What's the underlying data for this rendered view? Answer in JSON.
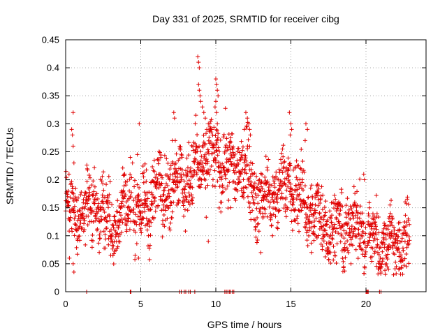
{
  "chart_data": {
    "type": "scatter",
    "title": "Day 331 of 2025, SRMTID for receiver cibg",
    "xlabel": "GPS time / hours",
    "ylabel": "SRMTID / TECUs",
    "xlim": [
      0,
      24
    ],
    "ylim": [
      0,
      0.45
    ],
    "xticks": [
      0,
      5,
      10,
      15,
      20
    ],
    "xtick_labels": [
      "0",
      "5",
      "10",
      "15",
      "20"
    ],
    "yticks": [
      0,
      0.05,
      0.1,
      0.15,
      0.2,
      0.25,
      0.3,
      0.35,
      0.4,
      0.45
    ],
    "ytick_labels": [
      "0",
      "0.05",
      "0.1",
      "0.15",
      "0.2",
      "0.25",
      "0.3",
      "0.35",
      "0.4",
      "0.45"
    ],
    "grid": true,
    "marker": "+",
    "color": "#e00000",
    "trend": [
      {
        "x": 0.0,
        "y": 0.15
      },
      {
        "x": 0.5,
        "y": 0.14
      },
      {
        "x": 1.0,
        "y": 0.15
      },
      {
        "x": 1.5,
        "y": 0.15
      },
      {
        "x": 2.0,
        "y": 0.15
      },
      {
        "x": 2.5,
        "y": 0.14
      },
      {
        "x": 3.0,
        "y": 0.12
      },
      {
        "x": 3.5,
        "y": 0.13
      },
      {
        "x": 4.0,
        "y": 0.15
      },
      {
        "x": 4.5,
        "y": 0.17
      },
      {
        "x": 5.0,
        "y": 0.13
      },
      {
        "x": 5.5,
        "y": 0.16
      },
      {
        "x": 6.0,
        "y": 0.18
      },
      {
        "x": 6.5,
        "y": 0.19
      },
      {
        "x": 7.0,
        "y": 0.19
      },
      {
        "x": 7.5,
        "y": 0.2
      },
      {
        "x": 8.0,
        "y": 0.2
      },
      {
        "x": 8.5,
        "y": 0.21
      },
      {
        "x": 9.0,
        "y": 0.23
      },
      {
        "x": 9.5,
        "y": 0.24
      },
      {
        "x": 10.0,
        "y": 0.23
      },
      {
        "x": 10.5,
        "y": 0.24
      },
      {
        "x": 11.0,
        "y": 0.21
      },
      {
        "x": 11.5,
        "y": 0.23
      },
      {
        "x": 12.0,
        "y": 0.22
      },
      {
        "x": 12.5,
        "y": 0.18
      },
      {
        "x": 13.0,
        "y": 0.17
      },
      {
        "x": 13.5,
        "y": 0.16
      },
      {
        "x": 14.0,
        "y": 0.18
      },
      {
        "x": 14.5,
        "y": 0.19
      },
      {
        "x": 15.0,
        "y": 0.19
      },
      {
        "x": 15.5,
        "y": 0.17
      },
      {
        "x": 16.0,
        "y": 0.15
      },
      {
        "x": 16.5,
        "y": 0.14
      },
      {
        "x": 17.0,
        "y": 0.13
      },
      {
        "x": 17.5,
        "y": 0.12
      },
      {
        "x": 18.0,
        "y": 0.11
      },
      {
        "x": 18.5,
        "y": 0.11
      },
      {
        "x": 19.0,
        "y": 0.12
      },
      {
        "x": 19.5,
        "y": 0.12
      },
      {
        "x": 20.0,
        "y": 0.1
      },
      {
        "x": 20.5,
        "y": 0.09
      },
      {
        "x": 21.0,
        "y": 0.09
      },
      {
        "x": 21.5,
        "y": 0.09
      },
      {
        "x": 22.0,
        "y": 0.09
      },
      {
        "x": 22.5,
        "y": 0.09
      },
      {
        "x": 22.9,
        "y": 0.1
      }
    ],
    "spread": 0.03,
    "gaps": [
      [
        4.4,
        4.5
      ],
      [
        20.0,
        20.1
      ]
    ],
    "outliers": [
      {
        "x": 0.5,
        "y": 0.32
      },
      {
        "x": 0.4,
        "y": 0.29
      },
      {
        "x": 0.45,
        "y": 0.28
      },
      {
        "x": 0.5,
        "y": 0.26
      },
      {
        "x": 0.55,
        "y": 0.23
      },
      {
        "x": 0.25,
        "y": 0.06
      },
      {
        "x": 0.55,
        "y": 0.035
      },
      {
        "x": 0.5,
        "y": 0.05
      },
      {
        "x": 3.9,
        "y": 0.21
      },
      {
        "x": 4.3,
        "y": 0.24
      },
      {
        "x": 4.45,
        "y": 0.23
      },
      {
        "x": 4.85,
        "y": 0.06
      },
      {
        "x": 4.9,
        "y": 0.3
      },
      {
        "x": 7.2,
        "y": 0.32
      },
      {
        "x": 7.25,
        "y": 0.31
      },
      {
        "x": 7.3,
        "y": 0.27
      },
      {
        "x": 7.1,
        "y": 0.27
      },
      {
        "x": 8.8,
        "y": 0.42
      },
      {
        "x": 8.85,
        "y": 0.41
      },
      {
        "x": 8.9,
        "y": 0.4
      },
      {
        "x": 8.85,
        "y": 0.37
      },
      {
        "x": 8.9,
        "y": 0.36
      },
      {
        "x": 8.95,
        "y": 0.35
      },
      {
        "x": 9.0,
        "y": 0.34
      },
      {
        "x": 9.1,
        "y": 0.33
      },
      {
        "x": 9.2,
        "y": 0.32
      },
      {
        "x": 9.3,
        "y": 0.31
      },
      {
        "x": 9.5,
        "y": 0.3
      },
      {
        "x": 9.6,
        "y": 0.3
      },
      {
        "x": 9.4,
        "y": 0.29
      },
      {
        "x": 10.0,
        "y": 0.38
      },
      {
        "x": 10.05,
        "y": 0.37
      },
      {
        "x": 10.1,
        "y": 0.36
      },
      {
        "x": 10.15,
        "y": 0.35
      },
      {
        "x": 10.0,
        "y": 0.34
      },
      {
        "x": 9.95,
        "y": 0.33
      },
      {
        "x": 10.05,
        "y": 0.32
      },
      {
        "x": 10.1,
        "y": 0.3
      },
      {
        "x": 12.0,
        "y": 0.32
      },
      {
        "x": 12.1,
        "y": 0.31
      },
      {
        "x": 12.2,
        "y": 0.3
      },
      {
        "x": 12.25,
        "y": 0.29
      },
      {
        "x": 12.3,
        "y": 0.28
      },
      {
        "x": 11.9,
        "y": 0.29
      },
      {
        "x": 14.9,
        "y": 0.32
      },
      {
        "x": 15.0,
        "y": 0.3
      },
      {
        "x": 15.05,
        "y": 0.29
      },
      {
        "x": 14.95,
        "y": 0.28
      },
      {
        "x": 16.0,
        "y": 0.3
      },
      {
        "x": 16.1,
        "y": 0.29
      },
      {
        "x": 15.95,
        "y": 0.27
      },
      {
        "x": 19.85,
        "y": 0.21
      },
      {
        "x": 19.9,
        "y": 0.2
      },
      {
        "x": 11.0,
        "y": 0.15
      },
      {
        "x": 9.5,
        "y": 0.09
      },
      {
        "x": 13.0,
        "y": 0.07
      },
      {
        "x": 22.7,
        "y": 0.045
      },
      {
        "x": 21.5,
        "y": 0.04
      },
      {
        "x": 21.0,
        "y": 0.035
      },
      {
        "x": 3.0,
        "y": 0.065
      }
    ],
    "zero_points": [
      1.4,
      4.3,
      4.35,
      7.6,
      7.7,
      7.9,
      8.0,
      8.2,
      8.3,
      8.6,
      10.6,
      10.7,
      10.8,
      10.9,
      11.0,
      11.1,
      11.2,
      20.0,
      20.05,
      20.1,
      20.15,
      20.9,
      21.0
    ]
  }
}
